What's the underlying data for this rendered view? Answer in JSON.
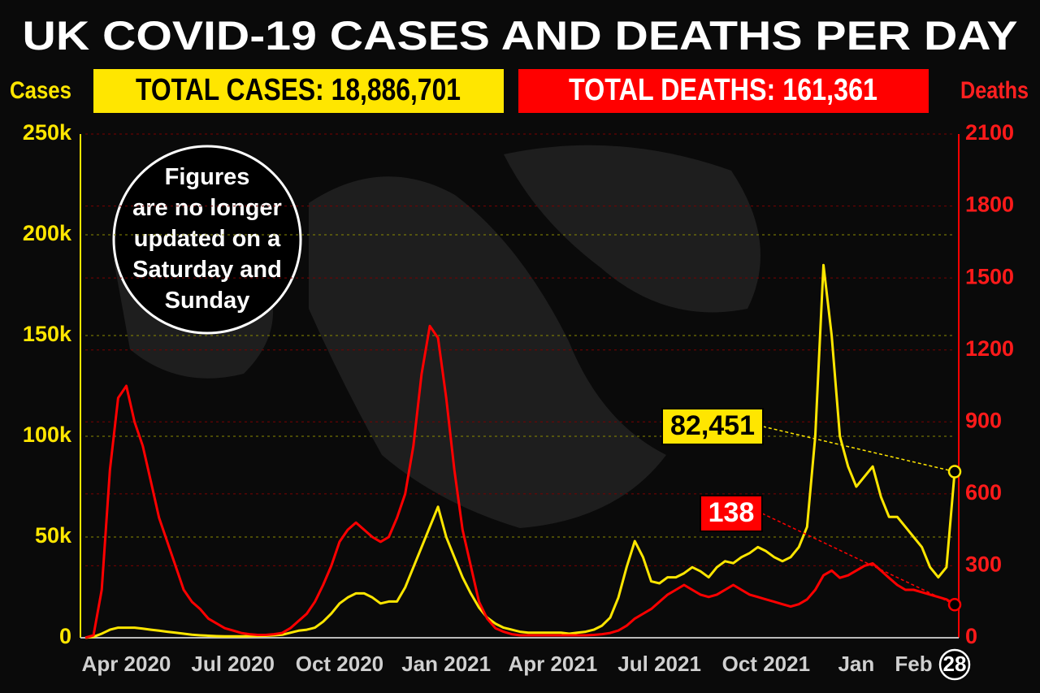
{
  "chart_data": {
    "type": "line",
    "title": "UK COVID-19 CASES AND DEATHS PER DAY",
    "total_cases": "TOTAL CASES: 18,886,701",
    "total_deaths": "TOTAL DEATHS: 161,361",
    "annotation": "Figures are no longer updated on a Saturday and Sunday",
    "categories": [
      null,
      null,
      null,
      null,
      null,
      "Apr 2020",
      null,
      null,
      null,
      null,
      null,
      null,
      null,
      null,
      null,
      null,
      null,
      null,
      "Jul 2020",
      null,
      null,
      null,
      null,
      null,
      null,
      null,
      null,
      null,
      null,
      null,
      null,
      "Oct 2020",
      null,
      null,
      null,
      null,
      null,
      null,
      null,
      null,
      null,
      null,
      null,
      null,
      "Jan 2021",
      null,
      null,
      null,
      null,
      null,
      null,
      null,
      null,
      null,
      null,
      null,
      null,
      "Apr 2021",
      null,
      null,
      null,
      null,
      null,
      null,
      null,
      null,
      null,
      null,
      null,
      null,
      "Jul 2021",
      null,
      null,
      null,
      null,
      null,
      null,
      null,
      null,
      null,
      null,
      null,
      null,
      "Oct 2021",
      null,
      null,
      null,
      null,
      null,
      null,
      null,
      null,
      null,
      null,
      "Jan",
      null,
      null,
      null,
      null,
      null,
      null,
      "Feb",
      null,
      null,
      null,
      null,
      "28"
    ],
    "series": [
      {
        "name": "Cases",
        "color": "#ffe600",
        "value_labels": {
          "106": "82,451"
        },
        "values": [
          0,
          500,
          2000,
          4000,
          5000,
          5000,
          5000,
          4500,
          4000,
          3500,
          3000,
          2500,
          2000,
          1500,
          1200,
          1000,
          800,
          700,
          700,
          700,
          800,
          900,
          1000,
          1200,
          1500,
          2500,
          3500,
          4000,
          5000,
          8000,
          12000,
          17000,
          20000,
          22000,
          22000,
          20000,
          17000,
          18000,
          18000,
          25000,
          35000,
          45000,
          55000,
          65000,
          50000,
          40000,
          30000,
          22000,
          15000,
          10000,
          7000,
          5000,
          4000,
          3000,
          2500,
          2500,
          2500,
          2500,
          2500,
          2000,
          2500,
          3000,
          4000,
          6000,
          10000,
          20000,
          35000,
          48000,
          40000,
          28000,
          27000,
          30000,
          30000,
          32000,
          35000,
          33000,
          30000,
          35000,
          38000,
          37000,
          40000,
          42000,
          45000,
          43000,
          40000,
          38000,
          40000,
          45000,
          55000,
          100000,
          185000,
          150000,
          100000,
          85000,
          75000,
          80000,
          85000,
          70000,
          60000,
          60000,
          55000,
          50000,
          45000,
          35000,
          30000,
          35000,
          82451
        ]
      },
      {
        "name": "Deaths",
        "color": "#ff0000",
        "axis": "y2",
        "value_labels": {
          "106": "138"
        },
        "values": [
          0,
          10,
          200,
          700,
          1000,
          1050,
          900,
          800,
          650,
          500,
          400,
          300,
          200,
          150,
          120,
          80,
          60,
          40,
          30,
          20,
          15,
          12,
          12,
          15,
          20,
          40,
          70,
          100,
          150,
          220,
          300,
          400,
          450,
          480,
          450,
          420,
          400,
          420,
          500,
          600,
          800,
          1100,
          1300,
          1250,
          1000,
          700,
          450,
          300,
          150,
          80,
          40,
          25,
          15,
          10,
          10,
          10,
          10,
          10,
          10,
          10,
          10,
          10,
          12,
          15,
          20,
          30,
          50,
          80,
          100,
          120,
          150,
          180,
          200,
          220,
          200,
          180,
          170,
          180,
          200,
          220,
          200,
          180,
          170,
          160,
          150,
          140,
          130,
          140,
          160,
          200,
          260,
          280,
          250,
          260,
          280,
          300,
          310,
          280,
          250,
          220,
          200,
          200,
          190,
          180,
          170,
          160,
          138
        ]
      }
    ],
    "ylim": [
      0,
      250000
    ],
    "yticks": [
      0,
      {
        "value": 50000,
        "label": "50k"
      },
      {
        "value": 100000,
        "label": "100k"
      },
      {
        "value": 150000,
        "label": "150k"
      },
      {
        "value": 200000,
        "label": "200k"
      },
      {
        "value": 250000,
        "label": "250k"
      }
    ],
    "y2lim": [
      0,
      2100
    ],
    "y2ticks": [
      0,
      300,
      600,
      900,
      1200,
      1500,
      1800,
      2100
    ],
    "grid": true
  }
}
